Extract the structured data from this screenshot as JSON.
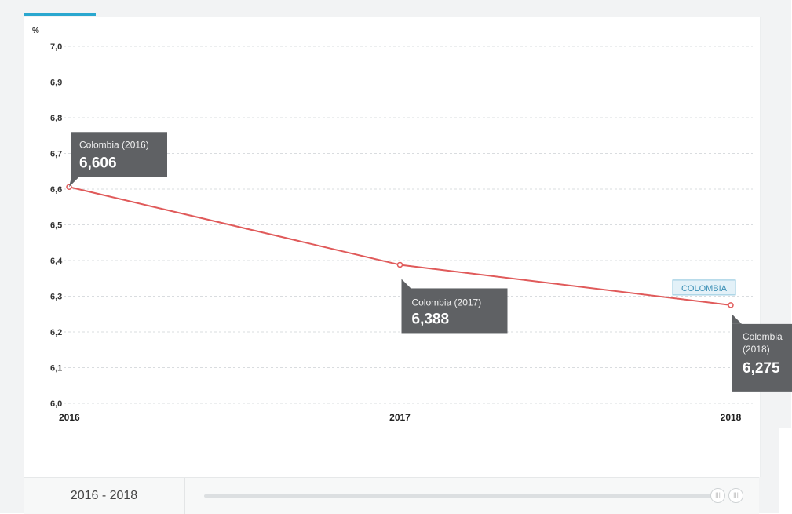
{
  "chart_data": {
    "type": "line",
    "unit_label": "%",
    "x": [
      "2016",
      "2017",
      "2018"
    ],
    "series": [
      {
        "name": "COLOMBIA",
        "values": [
          6.606,
          6.388,
          6.275
        ],
        "color": "#e05a5a"
      }
    ],
    "ylim": [
      6.0,
      7.0
    ],
    "y_ticks": [
      "6,0",
      "6,1",
      "6,2",
      "6,3",
      "6,4",
      "6,5",
      "6,6",
      "6,7",
      "6,8",
      "6,9",
      "7,0"
    ],
    "x_tick_labels": [
      "2016",
      "2017",
      "2018"
    ],
    "grid": true,
    "tooltips": [
      {
        "title": "Colombia (2016)",
        "value": "6,606"
      },
      {
        "title": "Colombia (2017)",
        "value": "6,388"
      },
      {
        "title": "Colombia (2018)",
        "value": "6,275"
      }
    ],
    "series_label": "COLOMBIA"
  },
  "footer": {
    "range_label": "2016 - 2018",
    "slider_value": [
      0.0,
      1.0
    ]
  },
  "colors": {
    "line": "#e05a5a",
    "tooltip_bg": "#5f6164",
    "accent": "#2aa7cf"
  }
}
